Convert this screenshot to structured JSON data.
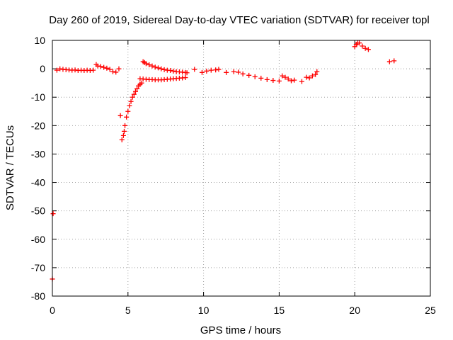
{
  "chart_data": {
    "type": "scatter",
    "title": "Day 260 of 2019, Sidereal Day-to-day VTEC variation (SDTVAR) for receiver topl",
    "xlabel": "GPS time / hours",
    "ylabel": "SDTVAR / TECUs",
    "xlim": [
      0,
      25
    ],
    "ylim": [
      -80,
      10
    ],
    "xticks": [
      0,
      5,
      10,
      15,
      20,
      25
    ],
    "yticks": [
      10,
      0,
      -10,
      -20,
      -30,
      -40,
      -50,
      -60,
      -70,
      -80
    ],
    "grid": true,
    "legend": "none",
    "marker": "plus",
    "color": "#ff0000",
    "series": [
      {
        "x": [
          0.0,
          0.05,
          0.3,
          0.5,
          0.7,
          0.9,
          1.1,
          1.3,
          1.5,
          1.7,
          1.9,
          2.1,
          2.3,
          2.5,
          2.7,
          2.9,
          3.0,
          3.2,
          3.4,
          3.6,
          3.8,
          4.0,
          4.2,
          4.4,
          4.5,
          4.6,
          4.7,
          4.75,
          4.8,
          4.9,
          5.0,
          5.1,
          5.2,
          5.3,
          5.4,
          5.5,
          5.6,
          5.7,
          5.8,
          5.9,
          6.0,
          6.1,
          6.2,
          6.4,
          6.6,
          6.8,
          7.0,
          7.2,
          7.4,
          7.6,
          7.8,
          8.0,
          8.2,
          8.4,
          8.6,
          8.8,
          8.9,
          5.8,
          6.0,
          6.2,
          6.4,
          6.6,
          6.8,
          7.0,
          7.2,
          7.4,
          7.6,
          7.8,
          8.0,
          8.2,
          8.4,
          8.6,
          8.8,
          9.4,
          9.9,
          10.2,
          10.5,
          10.8,
          11.0,
          11.5,
          12.0,
          12.3,
          12.6,
          13.0,
          13.4,
          13.8,
          14.2,
          14.6,
          15.0,
          15.2,
          15.4,
          15.6,
          15.8,
          16.0,
          16.5,
          16.8,
          17.0,
          17.2,
          17.4,
          17.5,
          20.0,
          20.1,
          20.2,
          20.3,
          20.5,
          20.7,
          20.9,
          22.3,
          22.6
        ],
        "y": [
          -74,
          -51,
          -0.5,
          0,
          -0.2,
          -0.3,
          -0.4,
          -0.5,
          -0.4,
          -0.6,
          -0.5,
          -0.6,
          -0.5,
          -0.6,
          -0.5,
          1.5,
          1.0,
          0.8,
          0.5,
          0.2,
          -0.2,
          -1.0,
          -1.2,
          0,
          -16.5,
          -25,
          -23.5,
          -22,
          -20,
          -17,
          -15,
          -13,
          -11.5,
          -10,
          -9,
          -8,
          -7,
          -6,
          -5.5,
          -5,
          2.5,
          2.2,
          1.8,
          1.4,
          1.0,
          0.6,
          0.3,
          0,
          -0.3,
          -0.5,
          -0.6,
          -0.8,
          -1.0,
          -1.1,
          -1.2,
          -1.3,
          -1.4,
          -3.5,
          -3.6,
          -3.7,
          -3.8,
          -3.8,
          -3.9,
          -3.9,
          -3.9,
          -3.8,
          -3.7,
          -3.6,
          -3.5,
          -3.4,
          -3.3,
          -3.2,
          -3.1,
          -0.2,
          -1.3,
          -0.8,
          -0.5,
          -0.4,
          -0.2,
          -1.3,
          -1.0,
          -1.2,
          -1.8,
          -2.3,
          -2.8,
          -3.3,
          -3.8,
          -4.1,
          -4.3,
          -2.5,
          -3.0,
          -3.6,
          -4.2,
          -4.0,
          -4.5,
          -3.0,
          -3.2,
          -2.5,
          -2.0,
          -1.0,
          7.8,
          8.6,
          9.0,
          9.1,
          8.0,
          7.2,
          6.8,
          2.5,
          2.8
        ]
      }
    ]
  }
}
